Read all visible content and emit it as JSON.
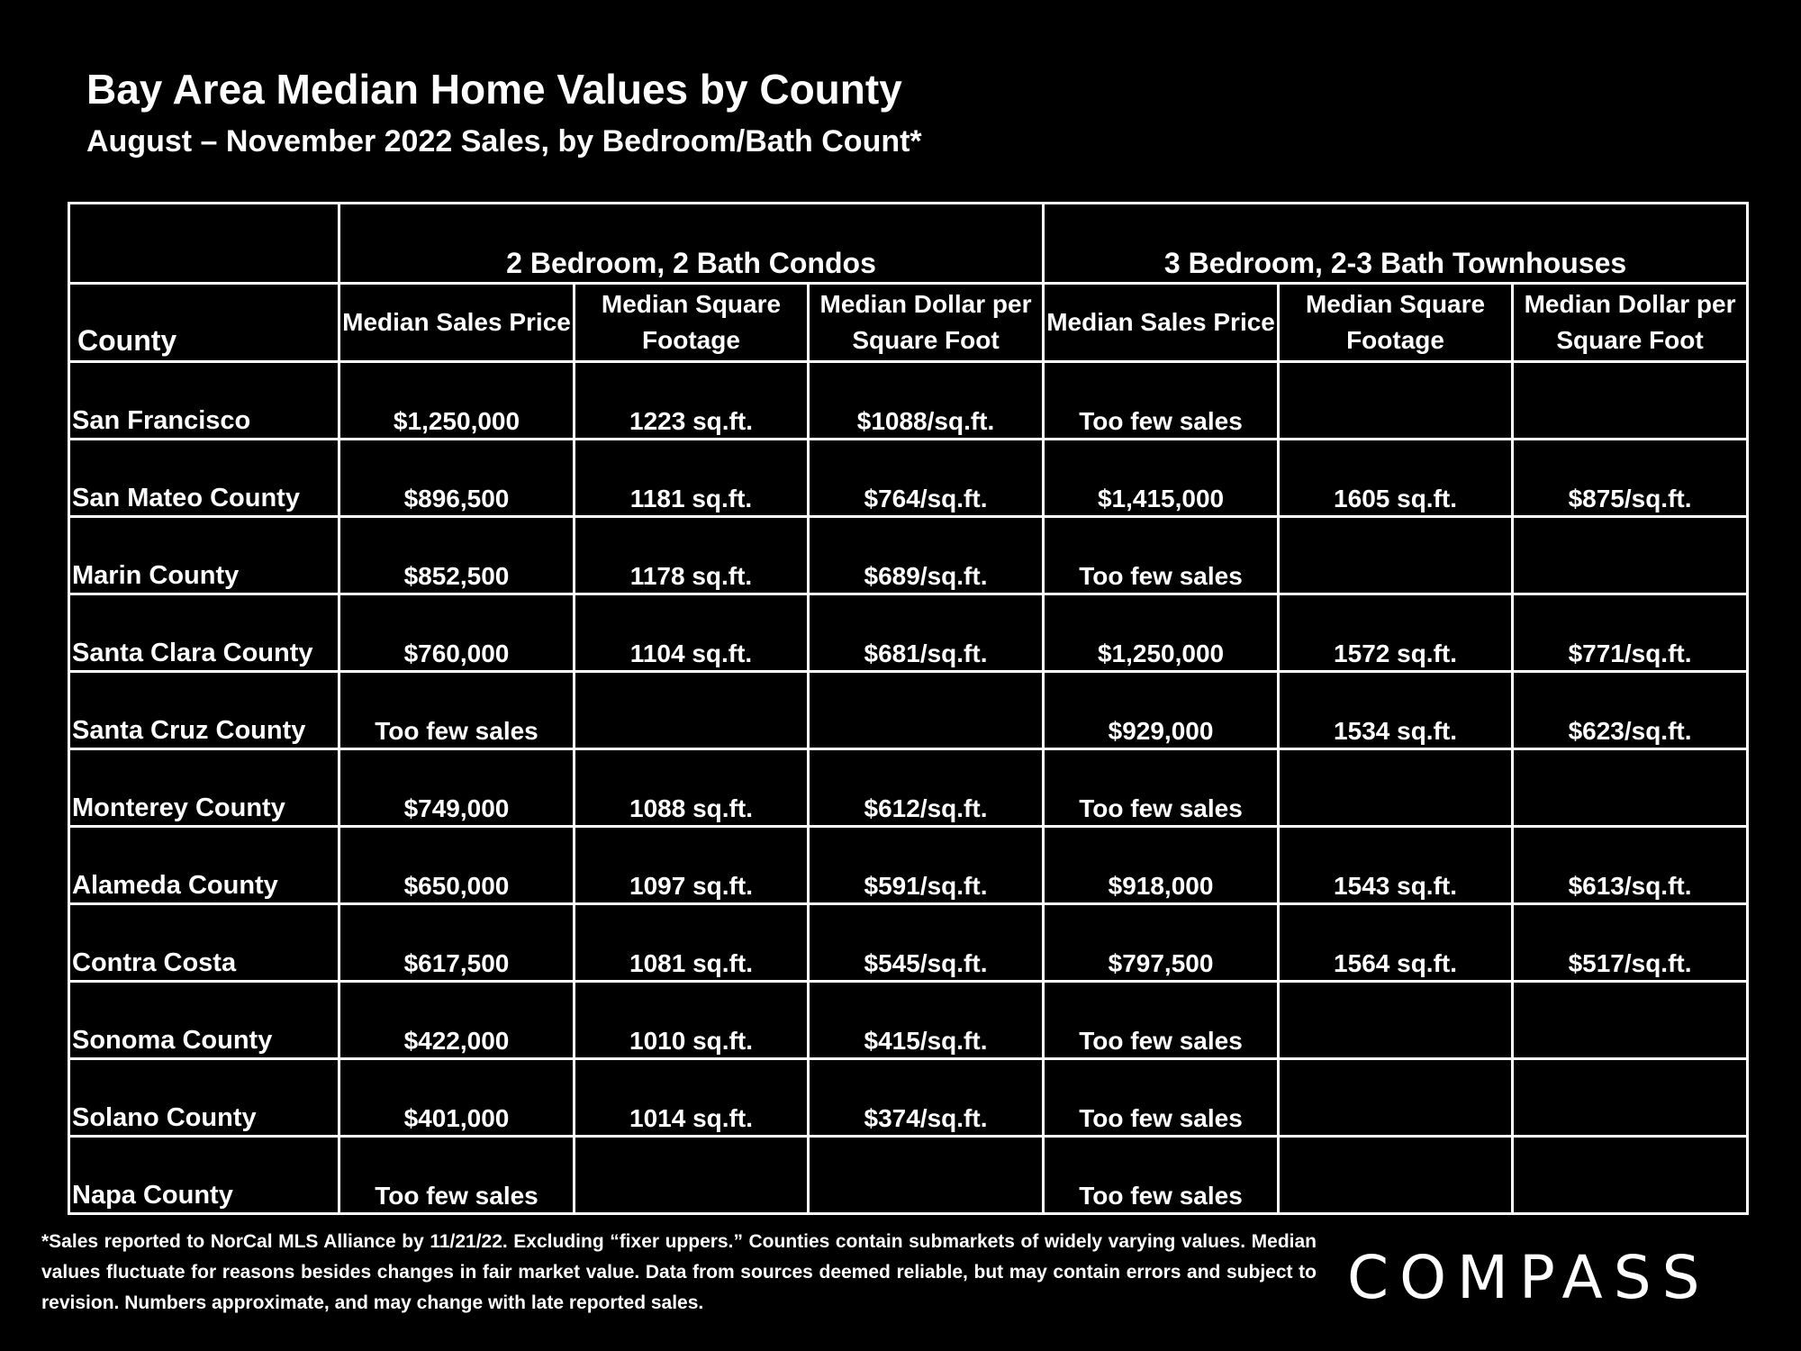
{
  "title": "Bay Area Median Home Values by County",
  "subtitle": "August – November 2022 Sales, by Bedroom/Bath Count*",
  "chart_data": {
    "type": "table",
    "groups": [
      "2 Bedroom, 2 Bath Condos",
      "3 Bedroom, 2-3 Bath Townhouses"
    ],
    "county_header": "County",
    "columns": [
      "Median Sales Price",
      "Median Square Footage",
      "Median Dollar per Square Foot",
      "Median Sales Price",
      "Median Square Footage",
      "Median Dollar per Square Foot"
    ],
    "rows": [
      {
        "county": "San Francisco",
        "cells": [
          "$1,250,000",
          "1223 sq.ft.",
          "$1088/sq.ft.",
          "Too few sales",
          "",
          ""
        ]
      },
      {
        "county": "San Mateo County",
        "cells": [
          "$896,500",
          "1181 sq.ft.",
          "$764/sq.ft.",
          "$1,415,000",
          "1605 sq.ft.",
          "$875/sq.ft."
        ]
      },
      {
        "county": "Marin County",
        "cells": [
          "$852,500",
          "1178 sq.ft.",
          "$689/sq.ft.",
          "Too few sales",
          "",
          ""
        ]
      },
      {
        "county": "Santa Clara County",
        "cells": [
          "$760,000",
          "1104 sq.ft.",
          "$681/sq.ft.",
          "$1,250,000",
          "1572 sq.ft.",
          "$771/sq.ft."
        ]
      },
      {
        "county": "Santa Cruz County",
        "cells": [
          "Too few sales",
          "",
          "",
          "$929,000",
          "1534 sq.ft.",
          "$623/sq.ft."
        ]
      },
      {
        "county": "Monterey County",
        "cells": [
          "$749,000",
          "1088 sq.ft.",
          "$612/sq.ft.",
          "Too few sales",
          "",
          ""
        ]
      },
      {
        "county": "Alameda County",
        "cells": [
          "$650,000",
          "1097 sq.ft.",
          "$591/sq.ft.",
          "$918,000",
          "1543 sq.ft.",
          "$613/sq.ft."
        ]
      },
      {
        "county": "Contra Costa",
        "cells": [
          "$617,500",
          "1081 sq.ft.",
          "$545/sq.ft.",
          "$797,500",
          "1564 sq.ft.",
          "$517/sq.ft."
        ]
      },
      {
        "county": "Sonoma County",
        "cells": [
          "$422,000",
          "1010 sq.ft.",
          "$415/sq.ft.",
          "Too few sales",
          "",
          ""
        ]
      },
      {
        "county": "Solano County",
        "cells": [
          "$401,000",
          "1014 sq.ft.",
          "$374/sq.ft.",
          "Too few sales",
          "",
          ""
        ]
      },
      {
        "county": "Napa County",
        "cells": [
          "Too few sales",
          "",
          "",
          "Too few sales",
          "",
          ""
        ]
      }
    ]
  },
  "footnote": "*Sales reported to NorCal MLS Alliance by 11/21/22. Excluding “fixer uppers.” Counties contain submarkets of widely varying values. Median values fluctuate for reasons besides changes in fair market value. Data from sources deemed reliable, but may contain errors and subject to revision.  Numbers approximate, and may change with late reported sales.",
  "logo": "COMPASS"
}
